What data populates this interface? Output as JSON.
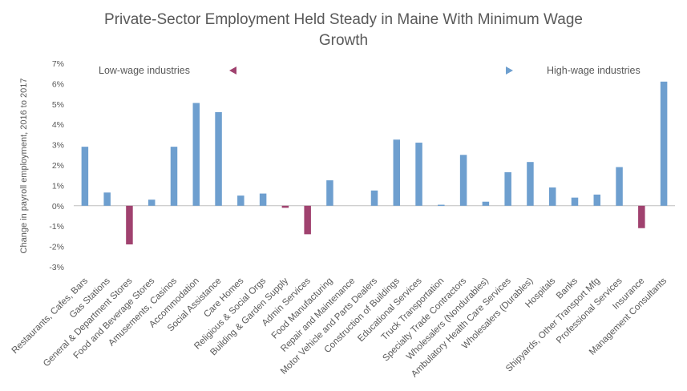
{
  "chart_data": {
    "type": "bar",
    "title": "Private-Sector Employment Held Steady in Maine With Minimum Wage Growth",
    "title_lines": [
      "Private-Sector Employment Held Steady in Maine With Minimum Wage",
      "Growth"
    ],
    "ylabel": "Change in payroll employment, 2016 to 2017",
    "xlabel": "",
    "ylim": [
      -3,
      7
    ],
    "yticks": [
      7,
      6,
      5,
      4,
      3,
      2,
      1,
      0,
      -1,
      -2,
      -3
    ],
    "ytick_labels": [
      "7%",
      "6%",
      "5%",
      "4%",
      "3%",
      "2%",
      "1%",
      "0%",
      "-1%",
      "-2%",
      "-3%"
    ],
    "grid": false,
    "legend": "none",
    "annotations": {
      "left": "Low-wage industries",
      "right": "High-wage industries",
      "arrow": "double-headed gradient arrow from low-wage to high-wage"
    },
    "colors": {
      "positive": "#6e9fcf",
      "negative": "#a0426f",
      "arrow_left": "#a0426f",
      "arrow_right": "#6e9fcf",
      "text": "#595959",
      "axis": "#bfbfbf"
    },
    "categories": [
      "Restaurants, Cafes, Bars",
      "Gas Stations",
      "General & Department Stores",
      "Food and Beverage Stores",
      "Amusements, Casinos",
      "Accommodation",
      "Social Assistance",
      "Care Homes",
      "Religious & Social Orgs",
      "Building & Garden Supply",
      "Admin Services",
      "Food Manufacturing",
      "Repair and Maintenance",
      "Motor Vehicle and Parts Dealers",
      "Construction of Buildings",
      "Educational Services",
      "Truck Transportation",
      "Specialty Trade Contractors",
      "Wholesalers (Nondurables)",
      "Ambulatory Health Care Services",
      "Wholesalers (Durables)",
      "Hospitals",
      "Banks",
      "Shipyards, Other Transport Mfg",
      "Professional Services",
      "Insurance",
      "Management Consultants"
    ],
    "values": [
      2.9,
      0.65,
      -1.9,
      0.3,
      2.9,
      5.05,
      4.6,
      0.5,
      0.6,
      -0.1,
      -1.4,
      1.25,
      0.0,
      0.75,
      3.25,
      3.1,
      0.05,
      2.5,
      0.2,
      1.65,
      2.15,
      0.9,
      0.4,
      0.55,
      1.9,
      -1.1,
      6.1
    ]
  }
}
